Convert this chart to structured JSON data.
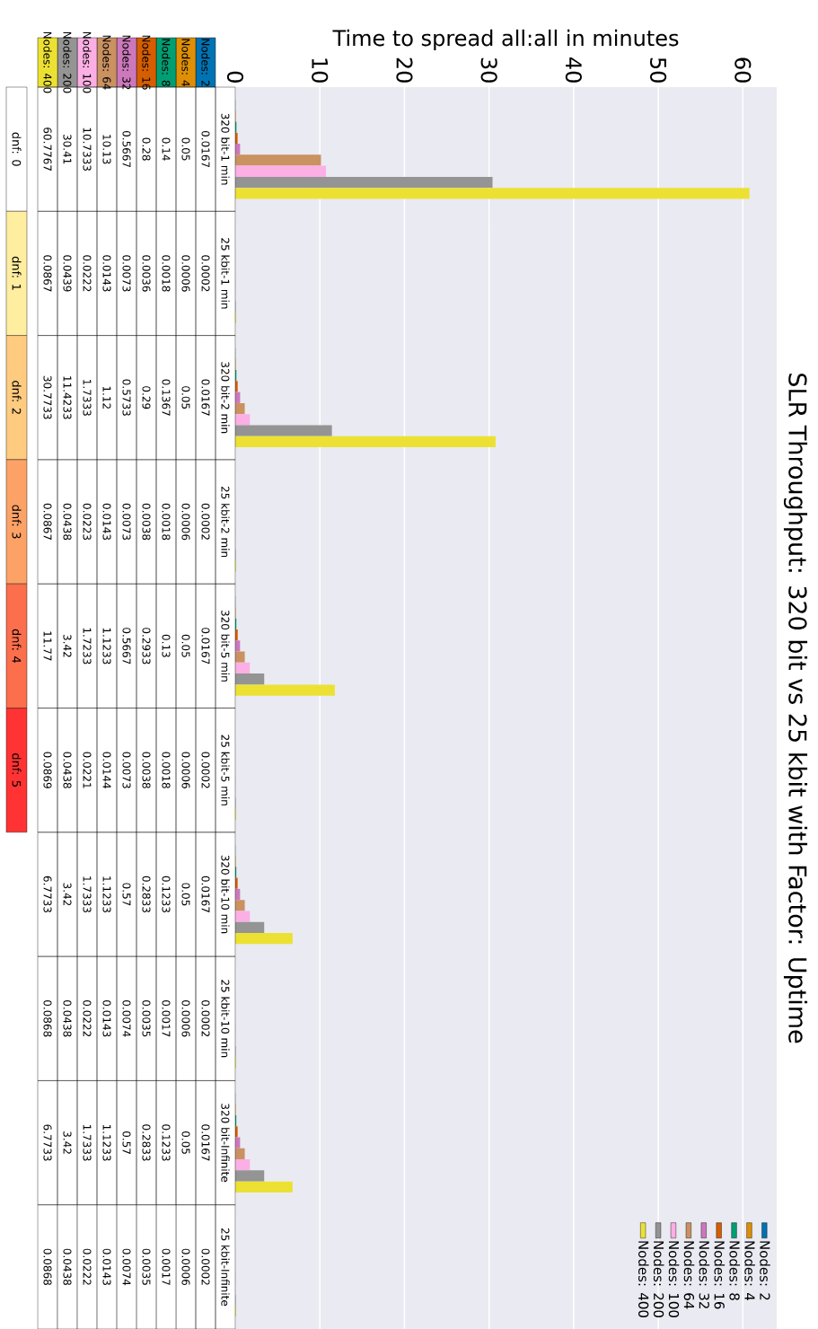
{
  "chart_data": {
    "type": "bar",
    "title": "SLR Throughput: 320 bit vs 25 kbit with Factor: Uptime",
    "xlabel": "Time to spread all:all in minutes",
    "categories": [
      "320 bit-1 min",
      "25 kbit-1 min",
      "320 bit-2 min",
      "25 kbit-2 min",
      "320 bit-5 min",
      "25 kbit-5 min",
      "320 bit-10 min",
      "25 kbit-10 min",
      "320 bit-Infinite",
      "25 kbit-Infinite"
    ],
    "series": [
      {
        "name": "Nodes: 2",
        "color": "#0173b2",
        "values": [
          0.0167,
          0.0002,
          0.0167,
          0.0002,
          0.0167,
          0.0002,
          0.0167,
          0.0002,
          0.0167,
          0.0002
        ]
      },
      {
        "name": "Nodes: 4",
        "color": "#de8f05",
        "values": [
          0.05,
          0.0006,
          0.05,
          0.0006,
          0.05,
          0.0006,
          0.05,
          0.0006,
          0.05,
          0.0006
        ]
      },
      {
        "name": "Nodes: 8",
        "color": "#029e73",
        "values": [
          0.14,
          0.0018,
          0.1367,
          0.0018,
          0.13,
          0.0018,
          0.1233,
          0.0017,
          0.1233,
          0.0017
        ]
      },
      {
        "name": "Nodes: 16",
        "color": "#d55e00",
        "values": [
          0.28,
          0.0036,
          0.29,
          0.0038,
          0.2933,
          0.0038,
          0.2833,
          0.0035,
          0.2833,
          0.0035
        ]
      },
      {
        "name": "Nodes: 32",
        "color": "#cc78bc",
        "values": [
          0.5667,
          0.0073,
          0.5733,
          0.0073,
          0.5667,
          0.0073,
          0.57,
          0.0074,
          0.57,
          0.0074
        ]
      },
      {
        "name": "Nodes: 64",
        "color": "#ca9161",
        "values": [
          10.13,
          0.0143,
          1.12,
          0.0143,
          1.1233,
          0.0144,
          1.1233,
          0.0143,
          1.1233,
          0.0143
        ]
      },
      {
        "name": "Nodes: 100",
        "color": "#fbafe4",
        "values": [
          10.7333,
          0.0222,
          1.7333,
          0.0223,
          1.7233,
          0.0221,
          1.7333,
          0.0222,
          1.7333,
          0.0222
        ]
      },
      {
        "name": "Nodes: 200",
        "color": "#949494",
        "values": [
          30.41,
          0.0439,
          11.4233,
          0.0438,
          3.42,
          0.0438,
          3.42,
          0.0438,
          3.42,
          0.0438
        ]
      },
      {
        "name": "Nodes: 400",
        "color": "#ece133",
        "values": [
          60.7767,
          0.0867,
          30.7733,
          0.0867,
          11.77,
          0.0869,
          6.7733,
          0.0868,
          6.7733,
          0.0868
        ]
      }
    ],
    "orientation": "horizontal",
    "xlim": [
      0,
      64
    ],
    "xticks": [
      0,
      10,
      20,
      30,
      40,
      50,
      60
    ],
    "grid": "x",
    "legend": "bottom right",
    "data_labels": true,
    "annotations": [
      "dnf: 0",
      "dnf: 1",
      "dnf: 2",
      "dnf: 3",
      "dnf: 4",
      "dnf: 5"
    ]
  }
}
